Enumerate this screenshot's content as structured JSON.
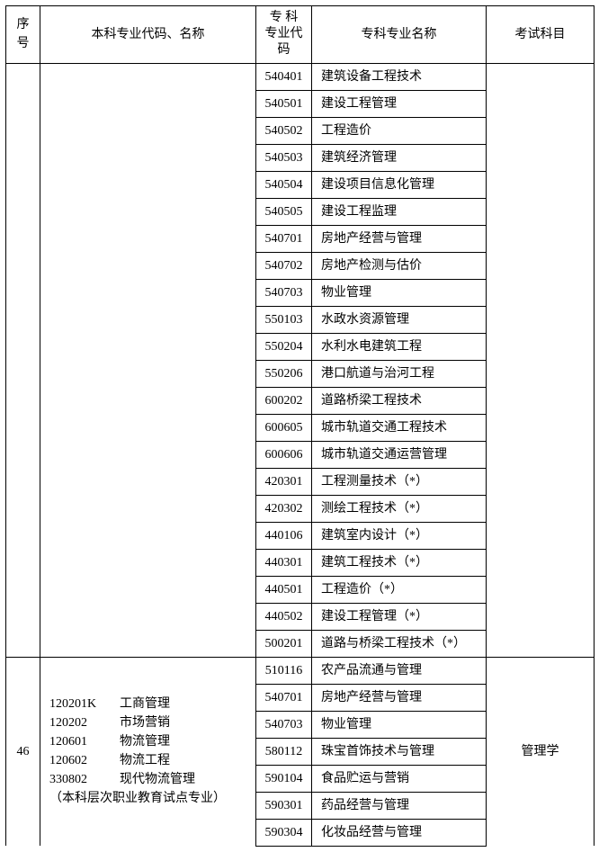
{
  "headers": {
    "seq": "序号",
    "bachelor": "本科专业代码、名称",
    "majorCode": "专 科\n专业代码",
    "majorName": "专科专业名称",
    "exam": "考试科目"
  },
  "group1": {
    "seq": "",
    "bachelor": "",
    "exam": "",
    "rows": [
      {
        "code": "540401",
        "name": "建筑设备工程技术"
      },
      {
        "code": "540501",
        "name": "建设工程管理"
      },
      {
        "code": "540502",
        "name": "工程造价"
      },
      {
        "code": "540503",
        "name": "建筑经济管理"
      },
      {
        "code": "540504",
        "name": "建设项目信息化管理"
      },
      {
        "code": "540505",
        "name": "建设工程监理"
      },
      {
        "code": "540701",
        "name": "房地产经营与管理"
      },
      {
        "code": "540702",
        "name": "房地产检测与估价"
      },
      {
        "code": "540703",
        "name": "物业管理"
      },
      {
        "code": "550103",
        "name": "水政水资源管理"
      },
      {
        "code": "550204",
        "name": "水利水电建筑工程"
      },
      {
        "code": "550206",
        "name": "港口航道与治河工程"
      },
      {
        "code": "600202",
        "name": "道路桥梁工程技术"
      },
      {
        "code": "600605",
        "name": "城市轨道交通工程技术"
      },
      {
        "code": "600606",
        "name": "城市轨道交通运营管理"
      },
      {
        "code": "420301",
        "name": "工程测量技术（*）"
      },
      {
        "code": "420302",
        "name": "测绘工程技术（*）"
      },
      {
        "code": "440106",
        "name": "建筑室内设计（*）"
      },
      {
        "code": "440301",
        "name": "建筑工程技术（*）"
      },
      {
        "code": "440501",
        "name": "工程造价（*）"
      },
      {
        "code": "440502",
        "name": "建设工程管理（*）"
      },
      {
        "code": "500201",
        "name": "道路与桥梁工程技术（*）"
      }
    ]
  },
  "group2": {
    "seq": "46",
    "bachelorLines": [
      {
        "code": "120201K",
        "name": "工商管理"
      },
      {
        "code": "120202",
        "name": "市场营销"
      },
      {
        "code": "120601",
        "name": "物流管理"
      },
      {
        "code": "120602",
        "name": "物流工程"
      },
      {
        "code": "330802",
        "name": "现代物流管理"
      }
    ],
    "bachelorNote": "（本科层次职业教育试点专业）",
    "exam": "管理学",
    "rows": [
      {
        "code": "510116",
        "name": "农产品流通与管理"
      },
      {
        "code": "540701",
        "name": "房地产经营与管理"
      },
      {
        "code": "540703",
        "name": "物业管理"
      },
      {
        "code": "580112",
        "name": "珠宝首饰技术与管理"
      },
      {
        "code": "590104",
        "name": "食品贮运与营销"
      },
      {
        "code": "590301",
        "name": "药品经营与管理"
      },
      {
        "code": "590304",
        "name": "化妆品经营与管理"
      }
    ]
  }
}
